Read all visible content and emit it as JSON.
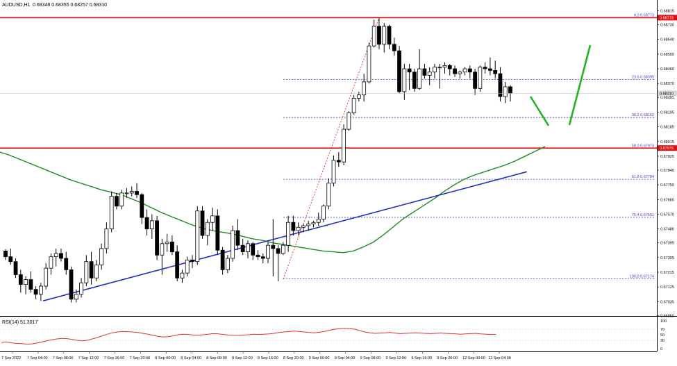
{
  "header": {
    "symbol": "AUDUSD,H1",
    "ohlc": "0.68348 0.68355 0.68257 0.68310"
  },
  "rsi_header": "RSI(14) 51.3017",
  "colors": {
    "candle": "#000000",
    "ma": "#1f8a1f",
    "trendline": "#1f2fc4",
    "support": "#e01010",
    "fib": "#3b3bd6",
    "arrow": "#22b422",
    "rsi": "#e03030"
  },
  "chart_data": [
    {
      "type": "candlestick",
      "symbol": "AUDUSD",
      "timeframe": "H1",
      "ylim": [
        0.6696,
        0.6883
      ],
      "y_ticks": [
        "0.68815",
        "0.68730",
        "0.68640",
        "0.68550",
        "0.68460",
        "0.68370",
        "0.68285",
        "0.68195",
        "0.68105",
        "0.68015",
        "0.67925",
        "0.67840",
        "0.67750",
        "0.67660",
        "0.67570",
        "0.67480",
        "0.67395",
        "0.67305",
        "0.67215",
        "0.67125",
        "0.67035",
        "0.66950"
      ],
      "current_price": "0.68310",
      "x_ticks": [
        "7 Sep 2022",
        "7 Sep 04:00",
        "7 Sep 08:00",
        "7 Sep 12:00",
        "7 Sep 16:00",
        "7 Sep 20:00",
        "8 Sep 00:00",
        "8 Sep 04:00",
        "8 Sep 08:00",
        "8 Sep 12:00",
        "8 Sep 16:00",
        "8 Sep 20:00",
        "9 Sep 00:00",
        "9 Sep 04:00",
        "9 Sep 08:00",
        "9 Sep 12:00",
        "9 Sep 16:00",
        "9 Sep 20:00",
        "12 Sep 00:00",
        "12 Sep 04:00"
      ],
      "candles": [
        [
          0.67345,
          0.67355,
          0.6729,
          0.6731
        ],
        [
          0.6731,
          0.6736,
          0.6726,
          0.6728
        ],
        [
          0.6728,
          0.673,
          0.6718,
          0.672
        ],
        [
          0.672,
          0.6723,
          0.6709,
          0.6714
        ],
        [
          0.6714,
          0.6719,
          0.6708,
          0.6717
        ],
        [
          0.6717,
          0.6722,
          0.6709,
          0.6711
        ],
        [
          0.6711,
          0.6713,
          0.6705,
          0.6708
        ],
        [
          0.6708,
          0.6715,
          0.6704,
          0.6713
        ],
        [
          0.6713,
          0.6727,
          0.6711,
          0.6724
        ],
        [
          0.6724,
          0.6733,
          0.672,
          0.6731
        ],
        [
          0.6731,
          0.6736,
          0.6725,
          0.6733
        ],
        [
          0.6733,
          0.6736,
          0.6728,
          0.673
        ],
        [
          0.673,
          0.6734,
          0.672,
          0.6723
        ],
        [
          0.6723,
          0.6725,
          0.6703,
          0.6705
        ],
        [
          0.6705,
          0.6711,
          0.6703,
          0.6708
        ],
        [
          0.6708,
          0.6718,
          0.6706,
          0.6715
        ],
        [
          0.6715,
          0.6732,
          0.6713,
          0.6728
        ],
        [
          0.6728,
          0.6734,
          0.6714,
          0.6718
        ],
        [
          0.6718,
          0.6729,
          0.6716,
          0.6726
        ],
        [
          0.6726,
          0.6739,
          0.6723,
          0.6736
        ],
        [
          0.6736,
          0.6752,
          0.6733,
          0.6748
        ],
        [
          0.6748,
          0.6771,
          0.6746,
          0.6768
        ],
        [
          0.6768,
          0.677,
          0.676,
          0.6762
        ],
        [
          0.6762,
          0.6772,
          0.676,
          0.677
        ],
        [
          0.677,
          0.6773,
          0.6767,
          0.677
        ],
        [
          0.677,
          0.6774,
          0.6768,
          0.6771
        ],
        [
          0.6771,
          0.6776,
          0.6767,
          0.6769
        ],
        [
          0.6769,
          0.677,
          0.6751,
          0.6755
        ],
        [
          0.6755,
          0.676,
          0.6744,
          0.6748
        ],
        [
          0.6748,
          0.6757,
          0.6742,
          0.6753
        ],
        [
          0.6753,
          0.6756,
          0.6729,
          0.6732
        ],
        [
          0.6732,
          0.6742,
          0.672,
          0.6739
        ],
        [
          0.6739,
          0.6745,
          0.6734,
          0.674
        ],
        [
          0.674,
          0.6744,
          0.6732,
          0.6734
        ],
        [
          0.6734,
          0.6738,
          0.6716,
          0.6718
        ],
        [
          0.6718,
          0.6723,
          0.6715,
          0.6721
        ],
        [
          0.6721,
          0.6731,
          0.6719,
          0.6729
        ],
        [
          0.6729,
          0.6732,
          0.6724,
          0.6728
        ],
        [
          0.6728,
          0.6762,
          0.6726,
          0.6759
        ],
        [
          0.6759,
          0.6762,
          0.6742,
          0.6744
        ],
        [
          0.6744,
          0.6754,
          0.6738,
          0.6752
        ],
        [
          0.6752,
          0.6761,
          0.6747,
          0.6756
        ],
        [
          0.6756,
          0.676,
          0.6732,
          0.6735
        ],
        [
          0.6735,
          0.6737,
          0.672,
          0.6723
        ],
        [
          0.6723,
          0.6732,
          0.6721,
          0.673
        ],
        [
          0.673,
          0.675,
          0.6728,
          0.6747
        ],
        [
          0.6747,
          0.6754,
          0.6735,
          0.6738
        ],
        [
          0.6738,
          0.6742,
          0.6732,
          0.6734
        ],
        [
          0.6734,
          0.6741,
          0.673,
          0.6739
        ],
        [
          0.6739,
          0.674,
          0.6729,
          0.6732
        ],
        [
          0.6732,
          0.6735,
          0.6729,
          0.6731
        ],
        [
          0.6731,
          0.6733,
          0.6727,
          0.673
        ],
        [
          0.673,
          0.674,
          0.6727,
          0.6738
        ],
        [
          0.6738,
          0.6754,
          0.6719,
          0.6736
        ],
        [
          0.6736,
          0.6738,
          0.6716,
          0.6733
        ],
        [
          0.6733,
          0.674,
          0.6732,
          0.6738
        ],
        [
          0.6738,
          0.6756,
          0.6734,
          0.6752
        ],
        [
          0.6752,
          0.6756,
          0.6744,
          0.6747
        ],
        [
          0.6747,
          0.6752,
          0.6744,
          0.6749
        ],
        [
          0.6749,
          0.6751,
          0.6746,
          0.675
        ],
        [
          0.675,
          0.6753,
          0.6747,
          0.6751
        ],
        [
          0.6751,
          0.6753,
          0.6749,
          0.6752
        ],
        [
          0.6752,
          0.6758,
          0.675,
          0.6754
        ],
        [
          0.6754,
          0.6763,
          0.6752,
          0.6762
        ],
        [
          0.6762,
          0.6779,
          0.676,
          0.6776
        ],
        [
          0.6776,
          0.6793,
          0.6774,
          0.679
        ],
        [
          0.679,
          0.6795,
          0.6786,
          0.6789
        ],
        [
          0.6789,
          0.6812,
          0.6787,
          0.6809
        ],
        [
          0.6809,
          0.682,
          0.6808,
          0.6819
        ],
        [
          0.6819,
          0.683,
          0.6818,
          0.6828
        ],
        [
          0.6828,
          0.6832,
          0.6826,
          0.683
        ],
        [
          0.683,
          0.6843,
          0.6826,
          0.6838
        ],
        [
          0.6838,
          0.6862,
          0.6837,
          0.686
        ],
        [
          0.686,
          0.6876,
          0.6859,
          0.6872
        ],
        [
          0.6872,
          0.6877,
          0.6858,
          0.6861
        ],
        [
          0.6861,
          0.6874,
          0.6856,
          0.6872
        ],
        [
          0.6872,
          0.6873,
          0.6858,
          0.6861
        ],
        [
          0.6861,
          0.6865,
          0.6854,
          0.6857
        ],
        [
          0.6857,
          0.686,
          0.6831,
          0.6832
        ],
        [
          0.6832,
          0.6849,
          0.6827,
          0.6846
        ],
        [
          0.6846,
          0.6849,
          0.6833,
          0.6844
        ],
        [
          0.6844,
          0.6846,
          0.6832,
          0.6834
        ],
        [
          0.6834,
          0.6858,
          0.6833,
          0.6846
        ],
        [
          0.6846,
          0.6849,
          0.684,
          0.6842
        ],
        [
          0.6842,
          0.6847,
          0.6836,
          0.6844
        ],
        [
          0.6844,
          0.6849,
          0.684,
          0.6847
        ],
        [
          0.6847,
          0.6849,
          0.6834,
          0.6847
        ],
        [
          0.6847,
          0.685,
          0.6843,
          0.6848
        ],
        [
          0.6848,
          0.6849,
          0.6842,
          0.6846
        ],
        [
          0.6846,
          0.6848,
          0.6841,
          0.6843
        ],
        [
          0.6843,
          0.6845,
          0.684,
          0.6844
        ],
        [
          0.6844,
          0.6847,
          0.6842,
          0.6846
        ],
        [
          0.6846,
          0.6848,
          0.684,
          0.6844
        ],
        [
          0.6844,
          0.6846,
          0.683,
          0.6834
        ],
        [
          0.6834,
          0.6848,
          0.6832,
          0.6847
        ],
        [
          0.6847,
          0.685,
          0.6843,
          0.6846
        ],
        [
          0.6846,
          0.6853,
          0.6842,
          0.6845
        ],
        [
          0.6845,
          0.6851,
          0.684,
          0.6843
        ],
        [
          0.6843,
          0.6847,
          0.6826,
          0.6829
        ],
        [
          0.6829,
          0.6838,
          0.6825,
          0.6835
        ],
        [
          0.6835,
          0.6836,
          0.6826,
          0.6831
        ]
      ],
      "moving_average": [
        0.6795,
        0.6793,
        0.67905,
        0.6788,
        0.67855,
        0.6783,
        0.67805,
        0.6778,
        0.6776,
        0.6774,
        0.6772,
        0.67705,
        0.6769,
        0.67665,
        0.6764,
        0.6761,
        0.6758,
        0.67555,
        0.6753,
        0.67505,
        0.67485,
        0.6747,
        0.6746,
        0.6745,
        0.67435,
        0.6742,
        0.6741,
        0.67395,
        0.67385,
        0.67375,
        0.67365,
        0.67355,
        0.67345,
        0.6734,
        0.67335,
        0.67345,
        0.6737,
        0.674,
        0.67445,
        0.67495,
        0.67545,
        0.67585,
        0.67625,
        0.67665,
        0.6771,
        0.6775,
        0.67785,
        0.6781,
        0.6783,
        0.6785,
        0.6787,
        0.67895,
        0.67925,
        0.67955,
        0.67985
      ],
      "trendline": {
        "from": [
          8,
          0.6704
        ],
        "to": [
          103,
          0.6783
        ]
      },
      "support_levels": [
        0.68773,
        0.67975
      ],
      "fibonacci": {
        "from_index": 55,
        "levels": [
          {
            "label": "0.0 0.68773",
            "price": 0.68773
          },
          {
            "label": "23.6 0.68395",
            "price": 0.68395
          },
          {
            "label": "38.2 0.68162",
            "price": 0.68162
          },
          {
            "label": "50.0 0.67973",
            "price": 0.67973
          },
          {
            "label": "61.8 0.67784",
            "price": 0.67784
          },
          {
            "label": "76.4 0.67551",
            "price": 0.67551
          },
          {
            "label": "100.0 0.67174",
            "price": 0.67174
          }
        ]
      },
      "rsi": {
        "ylim": [
          0,
          100
        ],
        "y_ticks": [
          "100",
          "70",
          "50",
          "30",
          "0"
        ],
        "values": [
          22,
          24,
          21,
          19,
          18,
          16,
          17,
          20,
          24,
          28,
          32,
          35,
          37,
          36,
          33,
          30,
          28,
          30,
          35,
          40,
          46,
          52,
          57,
          60,
          62,
          61,
          60,
          58,
          55,
          52,
          48,
          44,
          42,
          43,
          46,
          50,
          52,
          51,
          49,
          48,
          50,
          52,
          54,
          53,
          51,
          49,
          48,
          48,
          49,
          50,
          52,
          51,
          52,
          53,
          55,
          58,
          60,
          62,
          63,
          62,
          60,
          58,
          57,
          59,
          62,
          66,
          70,
          72,
          73,
          72,
          70,
          65,
          60,
          57,
          55,
          56,
          57,
          58,
          56,
          54,
          55,
          56,
          57,
          56,
          55,
          54,
          55,
          56,
          55,
          54,
          53,
          52,
          53,
          54,
          55,
          53,
          52,
          51,
          51
        ]
      }
    }
  ]
}
